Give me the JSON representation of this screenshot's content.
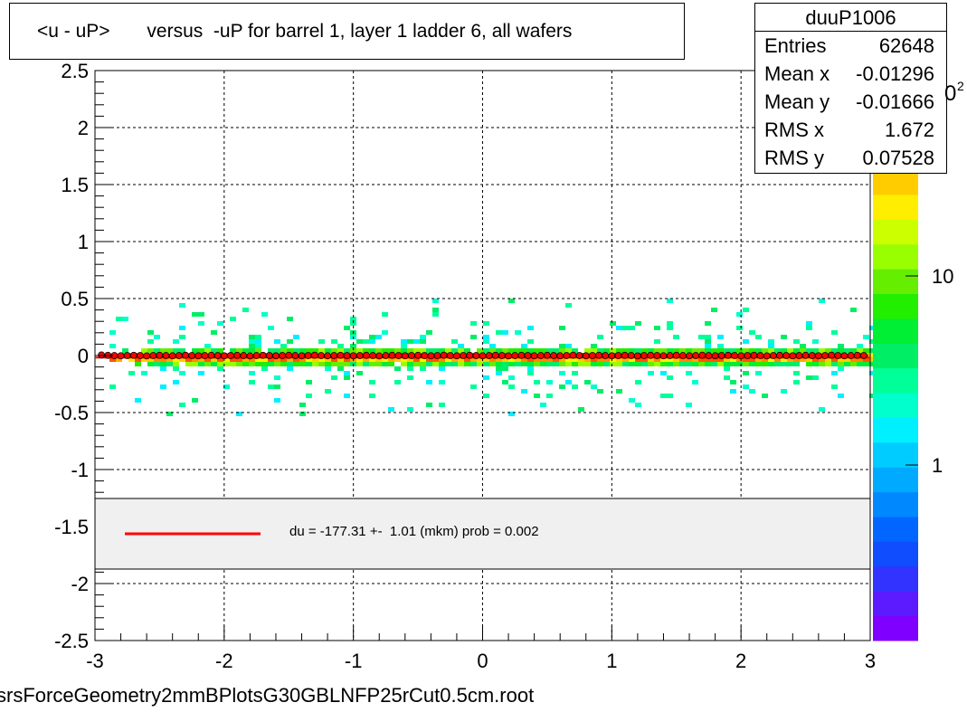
{
  "title": "<u - uP>       versus  -uP for barrel 1, layer 1 ladder 6, all wafers",
  "stats": {
    "name": "duuP1006",
    "rows": [
      {
        "label": "Entries",
        "value": "62648"
      },
      {
        "label": "Mean x",
        "value": "-0.01296"
      },
      {
        "label": "Mean y",
        "value": "-0.01666"
      },
      {
        "label": "RMS x",
        "value": "1.672"
      },
      {
        "label": "RMS y",
        "value": "0.07528"
      }
    ]
  },
  "fit_legend": {
    "label": "du = -177.31 +-  1.01 (mkm) prob = 0.002",
    "line_color": "#ff0000"
  },
  "footer": "srsForceGeometry2mmBPlotsG30GBLNFP25rCut0.5cm.root",
  "colorbar": {
    "tick_labels": [
      "1",
      "10"
    ],
    "exponent_base": "0",
    "exponent": "2"
  },
  "chart_data": {
    "type": "heatmap",
    "title": "<u - uP>       versus  -uP for barrel 1, layer 1 ladder 6, all wafers",
    "xlim": [
      -3,
      3
    ],
    "ylim": [
      -2.5,
      2.5
    ],
    "x_ticks": [
      "-3",
      "-2",
      "-1",
      "0",
      "1",
      "2",
      "3"
    ],
    "y_ticks": [
      "-2.5",
      "-2",
      "-1.5",
      "-1",
      "-0.5",
      "0",
      "0.5",
      "1",
      "1.5",
      "2",
      "2.5"
    ],
    "grid": true,
    "z_scale": "log",
    "z_ticks": [
      1,
      10
    ],
    "band": {
      "y_center": 0,
      "y_core_halfwidth": 0.03,
      "y_scatter_range": [
        -0.5,
        0.5
      ]
    },
    "profile": {
      "x": [
        -2.95,
        -2.9,
        -2.85,
        -2.8,
        -2.75,
        -2.7,
        -2.65,
        -2.6,
        -2.55,
        -2.5,
        -2.45,
        -2.4,
        -2.35,
        -2.3,
        -2.25,
        -2.2,
        -2.15,
        -2.1,
        -2.05,
        -2.0,
        -1.95,
        -1.9,
        -1.85,
        -1.8,
        -1.75,
        -1.7,
        -1.65,
        -1.6,
        -1.55,
        -1.5,
        -1.45,
        -1.4,
        -1.35,
        -1.3,
        -1.25,
        -1.2,
        -1.15,
        -1.1,
        -1.05,
        -1.0,
        -0.95,
        -0.9,
        -0.85,
        -0.8,
        -0.75,
        -0.7,
        -0.65,
        -0.6,
        -0.55,
        -0.5,
        -0.45,
        -0.4,
        -0.35,
        -0.3,
        -0.25,
        -0.2,
        -0.15,
        -0.1,
        -0.05,
        0.0,
        0.05,
        0.1,
        0.15,
        0.2,
        0.25,
        0.3,
        0.35,
        0.4,
        0.45,
        0.5,
        0.55,
        0.6,
        0.65,
        0.7,
        0.75,
        0.8,
        0.85,
        0.9,
        0.95,
        1.0,
        1.05,
        1.1,
        1.15,
        1.2,
        1.25,
        1.3,
        1.35,
        1.4,
        1.45,
        1.5,
        1.55,
        1.6,
        1.65,
        1.7,
        1.75,
        1.8,
        1.85,
        1.9,
        1.95,
        2.0,
        2.05,
        2.1,
        2.15,
        2.2,
        2.25,
        2.3,
        2.35,
        2.4,
        2.45,
        2.5,
        2.55,
        2.6,
        2.65,
        2.7,
        2.75,
        2.8,
        2.85,
        2.9,
        2.95
      ],
      "y": [
        0.005,
        0.002,
        0.0,
        -0.002,
        0.0,
        0.002,
        0.0,
        -0.003,
        0.0,
        0.002,
        0.0,
        -0.002,
        0.0,
        0.003,
        0.0,
        -0.002,
        0.0,
        0.002,
        0.0,
        -0.002,
        0.0,
        0.002,
        0.0,
        -0.003,
        0.0,
        0.002,
        0.0,
        -0.002,
        0.0,
        0.002,
        0.0,
        -0.002,
        0.0,
        0.003,
        0.0,
        -0.002,
        0.0,
        0.002,
        0.0,
        -0.002,
        0.0,
        0.002,
        0.0,
        -0.003,
        0.0,
        0.002,
        0.0,
        -0.002,
        0.0,
        0.002,
        0.0,
        -0.002,
        0.0,
        0.003,
        0.0,
        -0.002,
        0.0,
        0.002,
        0.0,
        -0.002,
        0.0,
        0.002,
        0.0,
        -0.003,
        0.0,
        0.002,
        0.0,
        -0.002,
        0.0,
        0.002,
        0.0,
        -0.002,
        0.0,
        0.003,
        0.0,
        -0.002,
        0.0,
        0.002,
        0.0,
        -0.002,
        0.0,
        0.002,
        0.0,
        -0.003,
        0.0,
        0.002,
        0.0,
        -0.002,
        0.0,
        0.002,
        0.0,
        -0.002,
        0.0,
        0.003,
        0.0,
        -0.002,
        0.0,
        0.002,
        0.0,
        -0.002,
        0.0,
        0.002,
        0.0,
        -0.003,
        0.0,
        0.002,
        0.0,
        -0.002,
        0.0,
        0.002,
        0.0,
        -0.002,
        0.0,
        0.003,
        0.0,
        -0.002,
        0.0,
        0.002,
        0.0,
        0.004
      ]
    },
    "fit": {
      "y": -0.0177
    }
  }
}
